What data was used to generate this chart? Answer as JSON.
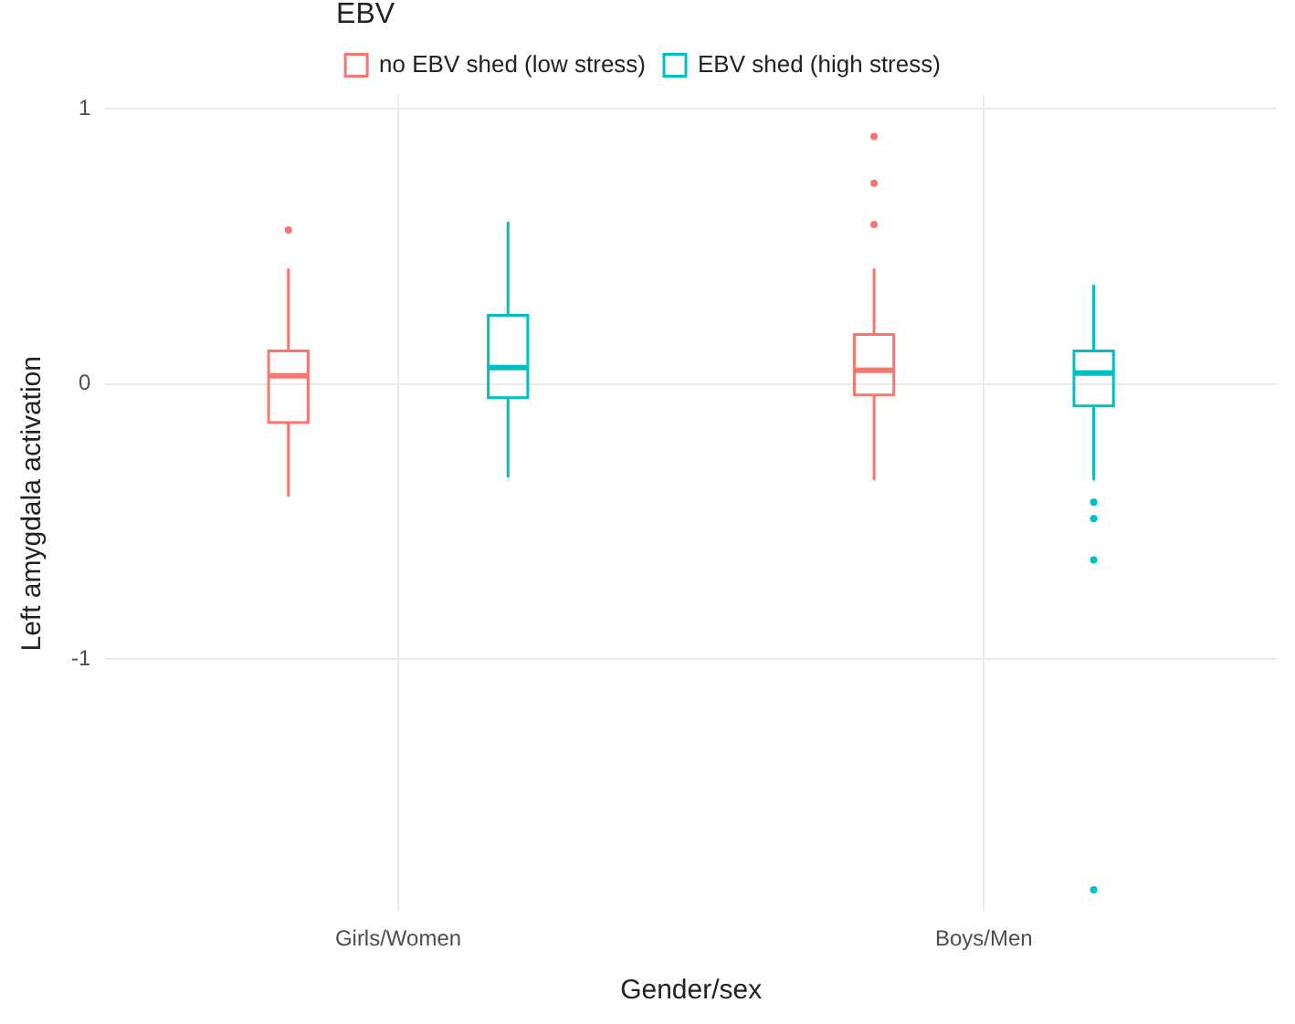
{
  "chart_data": {
    "type": "box",
    "xlabel": "Gender/sex",
    "ylabel": "Left amygdala activation",
    "legend_title": "EBV",
    "legend": "top",
    "grid": true,
    "categories": [
      "Girls/Women",
      "Boys/Men"
    ],
    "ylim": [
      -1.92,
      1.05
    ],
    "yticks": [
      -1,
      0,
      1
    ],
    "series": [
      {
        "name": "no EBV shed (low stress)",
        "color": "#f8766d",
        "boxes": [
          {
            "low": -0.41,
            "q1": -0.14,
            "median": 0.03,
            "q3": 0.12,
            "high": 0.42,
            "outliers": [
              0.56
            ]
          },
          {
            "low": -0.35,
            "q1": -0.04,
            "median": 0.05,
            "q3": 0.18,
            "high": 0.42,
            "outliers": [
              0.9,
              0.73,
              0.58
            ]
          }
        ]
      },
      {
        "name": "EBV shed (high stress)",
        "color": "#00bfc4",
        "boxes": [
          {
            "low": -0.34,
            "q1": -0.05,
            "median": 0.06,
            "q3": 0.25,
            "high": 0.59
          },
          {
            "low": -0.35,
            "q1": -0.08,
            "median": 0.04,
            "q3": 0.12,
            "high": 0.36,
            "outliers": [
              -0.43,
              -0.49,
              -0.64,
              -1.84
            ]
          }
        ]
      }
    ]
  }
}
